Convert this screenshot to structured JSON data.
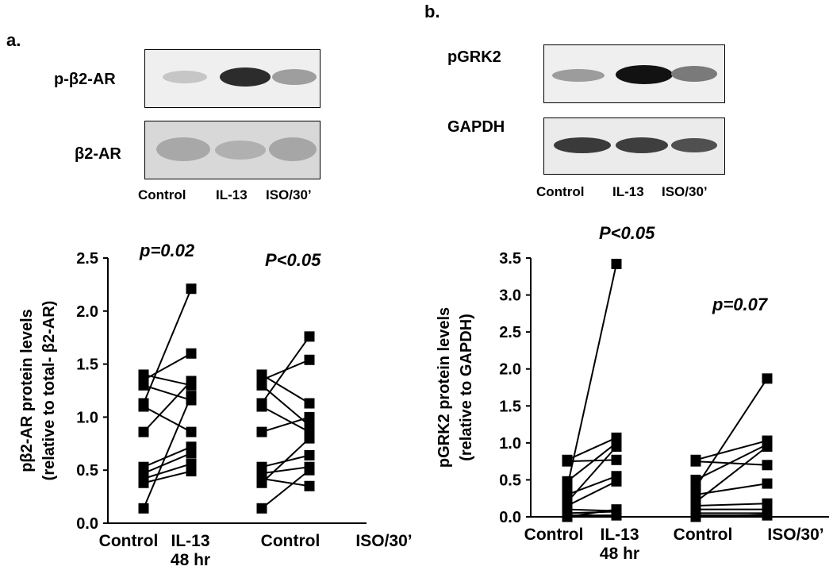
{
  "panel_a": {
    "label": "a.",
    "blot_labels": [
      "p-β2-AR",
      "β2-AR"
    ],
    "lanes": [
      "Control",
      "IL-13",
      "ISO/30’"
    ]
  },
  "panel_b": {
    "label": "b.",
    "blot_labels": [
      "pGRK2",
      "GAPDH"
    ],
    "lanes": [
      "Control",
      "IL-13",
      "ISO/30’"
    ]
  },
  "chart_data": [
    {
      "type": "scatter",
      "title": "",
      "ylabel": "pβ2-AR protein levels",
      "ylabel2": "(relative to total- β2-AR)",
      "ylim": [
        0,
        2.5
      ],
      "yticks": [
        "0.0",
        "0.5",
        "1.0",
        "1.5",
        "2.0",
        "2.5"
      ],
      "categories": [
        "Control",
        "IL-13",
        "Control",
        "ISO/30’"
      ],
      "category_sublabels": [
        "",
        "48 hr",
        "",
        ""
      ],
      "annotations": [
        "p=0.02",
        "P<0.05"
      ],
      "pairs": [
        {
          "from": "Control",
          "to": "IL-13",
          "before": [
            1.4,
            1.35,
            1.3,
            1.13,
            1.1,
            0.86,
            0.53,
            0.47,
            0.42,
            0.38,
            0.14
          ],
          "after": [
            1.3,
            1.6,
            1.16,
            2.21,
            0.86,
            1.34,
            0.72,
            0.66,
            0.56,
            0.49,
            1.2
          ]
        },
        {
          "from": "Control",
          "to": "ISO/30’",
          "before": [
            1.4,
            1.35,
            1.3,
            1.13,
            1.1,
            0.86,
            0.53,
            0.47,
            0.42,
            0.38,
            0.14
          ],
          "after": [
            1.13,
            1.54,
            0.92,
            1.76,
            0.86,
            1.0,
            0.64,
            0.53,
            0.35,
            0.8,
            0.5
          ]
        }
      ]
    },
    {
      "type": "scatter",
      "title": "",
      "ylabel": "pGRK2 protein levels",
      "ylabel2": "(relative to GAPDH)",
      "ylim": [
        0,
        3.5
      ],
      "yticks": [
        "0.0",
        "0.5",
        "1.0",
        "1.5",
        "2.0",
        "2.5",
        "3.0",
        "3.5"
      ],
      "categories": [
        "Control",
        "IL-13",
        "Control",
        "ISO/30’"
      ],
      "category_sublabels": [
        "",
        "48 hr",
        "",
        ""
      ],
      "annotations": [
        "P<0.05",
        "p=0.07"
      ],
      "pairs": [
        {
          "from": "Control",
          "to": "IL-13",
          "before": [
            0.77,
            0.75,
            0.48,
            0.4,
            0.3,
            0.2,
            0.15,
            0.1,
            0.05,
            0.02,
            0.0
          ],
          "after": [
            1.07,
            0.77,
            1.0,
            3.42,
            0.55,
            0.95,
            0.48,
            0.08,
            0.07,
            0.02,
            0.1
          ]
        },
        {
          "from": "Control",
          "to": "ISO/30’",
          "before": [
            0.77,
            0.75,
            0.5,
            0.4,
            0.3,
            0.2,
            0.15,
            0.1,
            0.05,
            0.02,
            0.0
          ],
          "after": [
            1.03,
            0.7,
            0.98,
            1.87,
            0.45,
            0.95,
            0.18,
            0.1,
            0.05,
            0.02,
            0.03
          ]
        }
      ]
    }
  ]
}
